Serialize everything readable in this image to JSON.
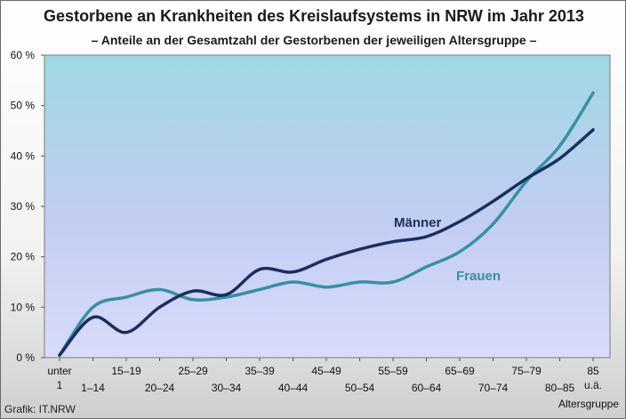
{
  "header": {
    "title": "Gestorbene an Krankheiten des Kreislaufsystems in NRW im Jahr 2013",
    "subtitle": "– Anteile an der Gesamtzahl der Gestorbenen der jeweiligen Altersgruppe –"
  },
  "footer": {
    "source": "Grafik: IT.NRW"
  },
  "chart_data": {
    "type": "line",
    "title": "Gestorbene an Krankheiten des Kreislaufsystems in NRW im Jahr 2013",
    "subtitle": "– Anteile an der Gesamtzahl der Gestorbenen der jeweiligen Altersgruppe –",
    "xlabel": "Altersgruppe",
    "ylabel": "",
    "ylim": [
      0,
      60
    ],
    "yticks": [
      "0 %",
      "10 %",
      "20 %",
      "30 %",
      "40 %",
      "50 %",
      "60 %"
    ],
    "grid": false,
    "categories": [
      "unter 1",
      "1–14",
      "15–19",
      "20–24",
      "25–29",
      "30–34",
      "35–39",
      "40–44",
      "45–49",
      "50–54",
      "55–59",
      "60–64",
      "65–69",
      "70–74",
      "75–79",
      "80–85",
      "85 u.ä."
    ],
    "category_labels": [
      [
        "unter",
        "1"
      ],
      [
        "1–14"
      ],
      [
        "15–19"
      ],
      [
        "20–24"
      ],
      [
        "25–29"
      ],
      [
        "30–34"
      ],
      [
        "35–39"
      ],
      [
        "40–44"
      ],
      [
        "45–49"
      ],
      [
        "50–54"
      ],
      [
        "55–59"
      ],
      [
        "60–64"
      ],
      [
        "65–69"
      ],
      [
        "70–74"
      ],
      [
        "75–79"
      ],
      [
        "80–85"
      ],
      [
        "85",
        "u.ä."
      ]
    ],
    "series": [
      {
        "name": "Männer",
        "color": "#1b2f5e",
        "values": [
          0.5,
          8.0,
          5.0,
          10.0,
          13.2,
          12.5,
          17.5,
          17.0,
          19.5,
          21.5,
          23.0,
          24.0,
          27.0,
          31.0,
          35.5,
          39.5,
          45.2
        ]
      },
      {
        "name": "Frauen",
        "color": "#3a8fa3",
        "values": [
          0.5,
          10.0,
          12.0,
          13.5,
          11.5,
          12.0,
          13.5,
          15.0,
          14.0,
          15.0,
          15.0,
          18.0,
          21.0,
          26.5,
          35.0,
          42.0,
          52.5
        ]
      }
    ]
  }
}
